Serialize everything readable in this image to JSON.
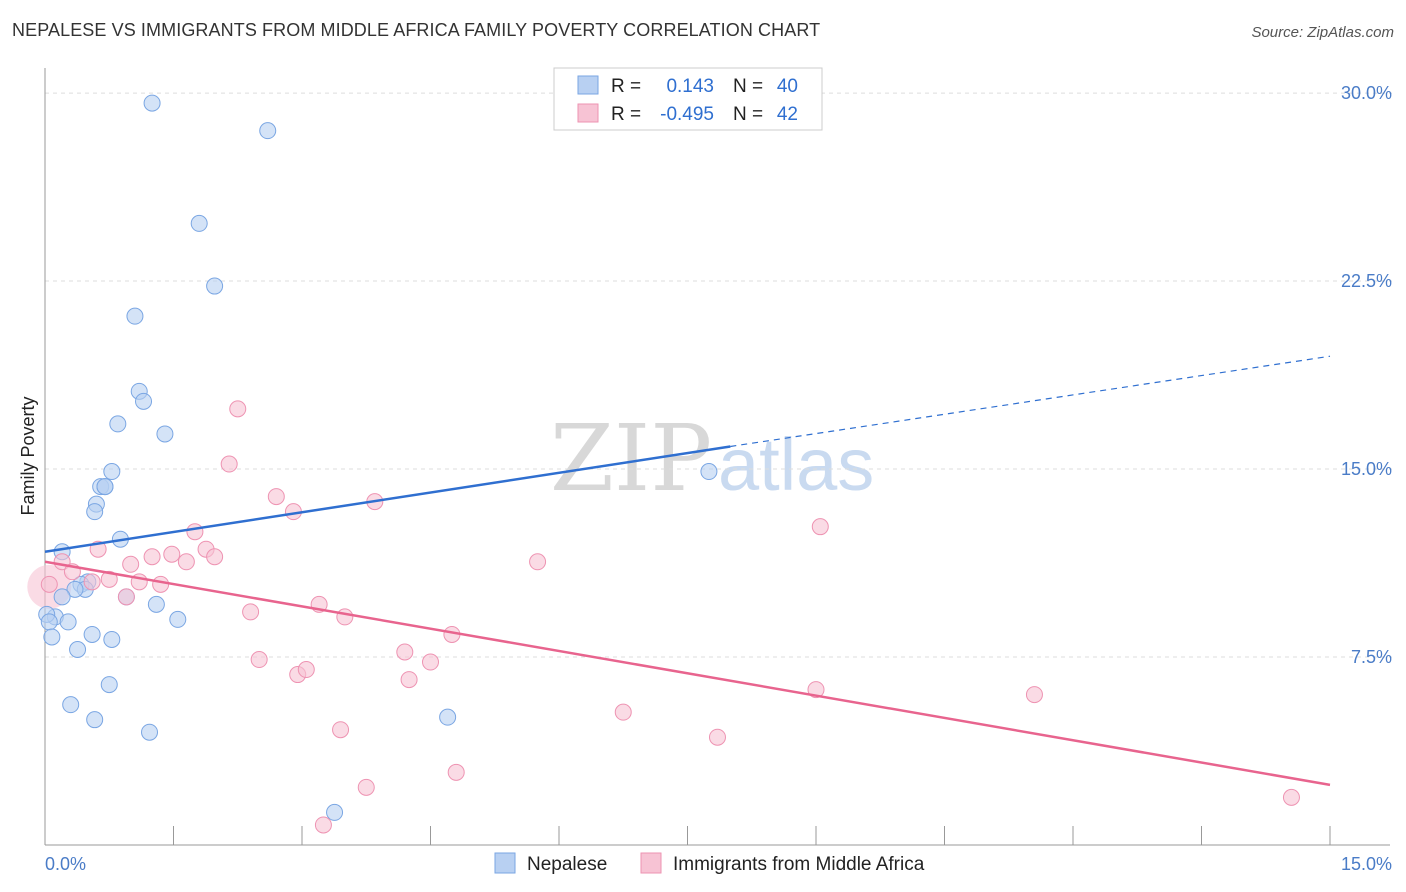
{
  "title": "NEPALESE VS IMMIGRANTS FROM MIDDLE AFRICA FAMILY POVERTY CORRELATION CHART",
  "source": "Source: ZipAtlas.com",
  "watermark": {
    "zip": "ZIP",
    "atlas": "atlas"
  },
  "colors": {
    "nepalese_fill": "#b8d0f2",
    "nepalese_stroke": "#7aa6e3",
    "nepalese_line": "#2f6fd0",
    "immig_fill": "#f7c3d4",
    "immig_stroke": "#ee93b2",
    "immig_line": "#e8648e",
    "tick_label": "#4a7cc7",
    "grid": "#dddddd"
  },
  "legend": {
    "rows": [
      {
        "r_label": "R =",
        "r_value": "0.143",
        "n_label": "N =",
        "n_value": "40"
      },
      {
        "r_label": "R =",
        "r_value": "-0.495",
        "n_label": "N =",
        "n_value": "42"
      }
    ]
  },
  "chart_data": {
    "type": "scatter",
    "title": "NEPALESE VS IMMIGRANTS FROM MIDDLE AFRICA FAMILY POVERTY CORRELATION CHART",
    "xlabel": "",
    "ylabel": "Family Poverty",
    "xlim": [
      0,
      15
    ],
    "ylim": [
      0,
      31
    ],
    "x_tick_labels": [
      "0.0%",
      "15.0%"
    ],
    "y_ticks": [
      7.5,
      15.0,
      22.5,
      30.0
    ],
    "y_tick_labels": [
      "7.5%",
      "15.0%",
      "22.5%",
      "30.0%"
    ],
    "grid": true,
    "legend_position": "top-center",
    "series": [
      {
        "name": "Nepalese",
        "r": 0.143,
        "n": 40,
        "trend": {
          "x": [
            0.0,
            8.0
          ],
          "y": [
            11.7,
            15.9
          ],
          "dashed_to": [
            15.0,
            19.5
          ]
        },
        "points": [
          [
            1.25,
            29.6
          ],
          [
            2.6,
            28.5
          ],
          [
            1.8,
            24.8
          ],
          [
            1.98,
            22.3
          ],
          [
            1.05,
            21.1
          ],
          [
            1.1,
            18.1
          ],
          [
            1.15,
            17.7
          ],
          [
            0.85,
            16.8
          ],
          [
            1.4,
            16.4
          ],
          [
            0.78,
            14.9
          ],
          [
            0.65,
            14.3
          ],
          [
            0.7,
            14.3
          ],
          [
            0.6,
            13.6
          ],
          [
            0.58,
            13.3
          ],
          [
            0.88,
            12.2
          ],
          [
            0.2,
            11.7
          ],
          [
            0.5,
            10.5
          ],
          [
            0.42,
            10.4
          ],
          [
            0.47,
            10.2
          ],
          [
            0.35,
            10.2
          ],
          [
            0.2,
            9.9
          ],
          [
            0.95,
            9.9
          ],
          [
            1.3,
            9.6
          ],
          [
            0.12,
            9.1
          ],
          [
            0.02,
            9.2
          ],
          [
            0.05,
            8.9
          ],
          [
            0.27,
            8.9
          ],
          [
            1.55,
            9.0
          ],
          [
            0.55,
            8.4
          ],
          [
            0.78,
            8.2
          ],
          [
            0.08,
            8.3
          ],
          [
            0.38,
            7.8
          ],
          [
            0.75,
            6.4
          ],
          [
            0.3,
            5.6
          ],
          [
            0.58,
            5.0
          ],
          [
            1.22,
            4.5
          ],
          [
            4.7,
            5.1
          ],
          [
            7.75,
            14.9
          ],
          [
            3.38,
            1.3
          ],
          [
            0.7,
            14.3
          ]
        ]
      },
      {
        "name": "Immigrants from Middle Africa",
        "r": -0.495,
        "n": 42,
        "trend": {
          "x": [
            0.0,
            15.0
          ],
          "y": [
            11.3,
            2.4
          ]
        },
        "points": [
          [
            0.05,
            10.4
          ],
          [
            0.2,
            11.3
          ],
          [
            0.32,
            10.9
          ],
          [
            0.55,
            10.5
          ],
          [
            0.62,
            11.8
          ],
          [
            0.75,
            10.6
          ],
          [
            0.95,
            9.9
          ],
          [
            1.0,
            11.2
          ],
          [
            1.1,
            10.5
          ],
          [
            1.25,
            11.5
          ],
          [
            1.35,
            10.4
          ],
          [
            1.48,
            11.6
          ],
          [
            1.65,
            11.3
          ],
          [
            1.75,
            12.5
          ],
          [
            1.88,
            11.8
          ],
          [
            1.98,
            11.5
          ],
          [
            2.15,
            15.2
          ],
          [
            2.25,
            17.4
          ],
          [
            2.4,
            9.3
          ],
          [
            2.5,
            7.4
          ],
          [
            2.7,
            13.9
          ],
          [
            2.9,
            13.3
          ],
          [
            2.95,
            6.8
          ],
          [
            3.05,
            7.0
          ],
          [
            3.2,
            9.6
          ],
          [
            3.25,
            0.8
          ],
          [
            3.45,
            4.6
          ],
          [
            3.5,
            9.1
          ],
          [
            3.75,
            2.3
          ],
          [
            3.85,
            13.7
          ],
          [
            4.2,
            7.7
          ],
          [
            4.25,
            6.6
          ],
          [
            4.5,
            7.3
          ],
          [
            4.75,
            8.4
          ],
          [
            4.8,
            2.9
          ],
          [
            5.75,
            11.3
          ],
          [
            6.75,
            5.3
          ],
          [
            7.85,
            4.3
          ],
          [
            9.0,
            6.2
          ],
          [
            9.05,
            12.7
          ],
          [
            11.55,
            6.0
          ],
          [
            14.55,
            1.9
          ]
        ]
      }
    ]
  },
  "bottom_legend": [
    "Nepalese",
    "Immigrants from Middle Africa"
  ]
}
